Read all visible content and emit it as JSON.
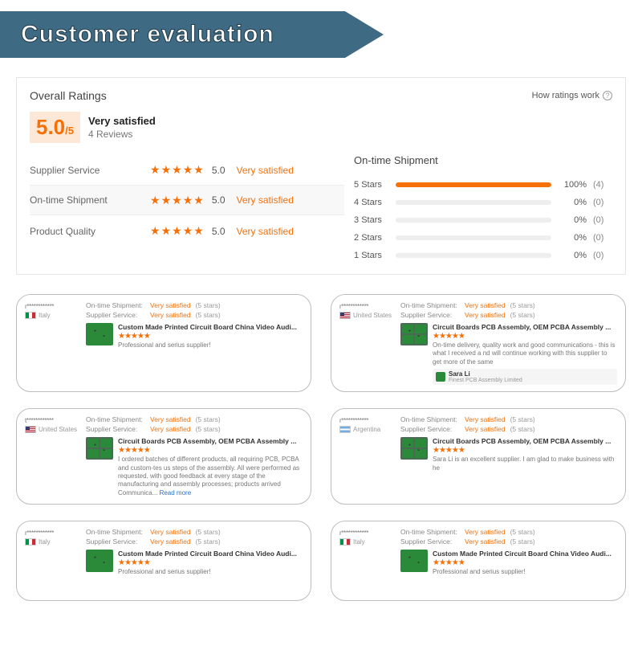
{
  "banner": {
    "title": "Customer evaluation",
    "bg": "#3f6a83",
    "fg": "#ffffff"
  },
  "card": {
    "overall_label": "Overall Ratings",
    "how_ratings": "How ratings work",
    "score": "5.0",
    "score_suffix": "/5",
    "satisfaction": "Very satisfied",
    "reviews_count": "4 Reviews",
    "metrics": [
      {
        "label": "Supplier Service",
        "score": "5.0",
        "tag": "Very satisfied"
      },
      {
        "label": "On-time Shipment",
        "score": "5.0",
        "tag": "Very satisfied"
      },
      {
        "label": "Product Quality",
        "score": "5.0",
        "tag": "Very satisfied"
      }
    ],
    "dist_title": "On-time Shipment",
    "dist": [
      {
        "label": "5  Stars",
        "pct": "100%",
        "fill": 100,
        "count": "(4)"
      },
      {
        "label": "4  Stars",
        "pct": "0%",
        "fill": 0,
        "count": "(0)"
      },
      {
        "label": "3  Stars",
        "pct": "0%",
        "fill": 0,
        "count": "(0)"
      },
      {
        "label": "2  Stars",
        "pct": "0%",
        "fill": 0,
        "count": "(0)"
      },
      {
        "label": "1  Stars",
        "pct": "0%",
        "fill": 0,
        "count": "(0)"
      }
    ]
  },
  "labels": {
    "ontime": "On-time Shipment:",
    "supplier": "Supplier Service:",
    "vs": "Very satisfied",
    "five_stars": "(5 stars)",
    "read_more": "Read more"
  },
  "tiles": [
    {
      "reviewer": "r************",
      "flag": "it",
      "country": "Italy",
      "product": "Custom Made Printed Circuit Board China Video Audi...",
      "thumb": "single",
      "comment": "Professional and serius supplier!"
    },
    {
      "reviewer": "r************",
      "flag": "us",
      "country": "United States",
      "product": "Circuit Boards PCB Assembly, OEM PCBA Assembly ...",
      "thumb": "quad",
      "comment": "On-time delivery, quality work and good communications - this is what I received a nd will continue working with this supplier to get more of the same",
      "reply": {
        "name": "Sara Li",
        "company": "Finest PCB Assembly Limited"
      }
    },
    {
      "reviewer": "t************",
      "flag": "us",
      "country": "United States",
      "product": "Circuit Boards PCB Assembly, OEM PCBA Assembly ...",
      "thumb": "quad",
      "comment": "I ordered batches of different products, all requiring PCB, PCBA and custom-tes us steps of the assembly. All were performed as requested, with good feedback at every stage of the manufacturing and assembly processes; products arrived Communica...",
      "read_more": true
    },
    {
      "reviewer": "r************",
      "flag": "ar",
      "country": "Argentina",
      "product": "Circuit Boards PCB Assembly, OEM PCBA Assembly ...",
      "thumb": "quad",
      "comment": "Sara Li is an excellent supplier. I am glad to make business with he"
    },
    {
      "reviewer": "r************",
      "flag": "it",
      "country": "Italy",
      "product": "Custom Made Printed Circuit Board China Video Audi...",
      "thumb": "single",
      "comment": "Professional and serius supplier!"
    },
    {
      "reviewer": "r************",
      "flag": "it",
      "country": "Italy",
      "product": "Custom Made Printed Circuit Board China Video Audi...",
      "thumb": "single",
      "comment": "Professional and serius supplier!"
    }
  ]
}
